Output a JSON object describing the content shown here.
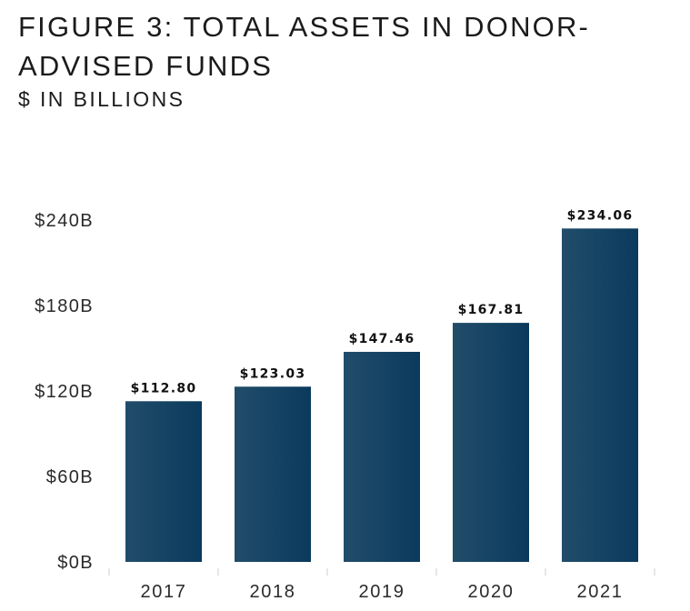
{
  "header": {
    "title": "FIGURE 3: TOTAL ASSETS IN DONOR-ADVISED FUNDS",
    "subtitle": "$ IN BILLIONS"
  },
  "colors": {
    "bar_start": "#214d6a",
    "bar_end": "#0a3a5d",
    "axis_tick": "#cfcfcf"
  },
  "chart_data": {
    "type": "bar",
    "title": "FIGURE 3: TOTAL ASSETS IN DONOR-ADVISED FUNDS",
    "subtitle": "$ IN BILLIONS",
    "categories": [
      "2017",
      "2018",
      "2019",
      "2020",
      "2021"
    ],
    "values": [
      112.8,
      123.03,
      147.46,
      167.81,
      234.06
    ],
    "data_labels": [
      "$112.80",
      "$123.03",
      "$147.46",
      "$167.81",
      "$234.06"
    ],
    "yticks": [
      0,
      60,
      120,
      180,
      240
    ],
    "ytick_labels": [
      "$0B",
      "$60B",
      "$120B",
      "$180B",
      "$240B"
    ],
    "ylim": [
      0,
      240
    ],
    "xlabel": "",
    "ylabel": "",
    "grid": false,
    "legend": "none"
  }
}
